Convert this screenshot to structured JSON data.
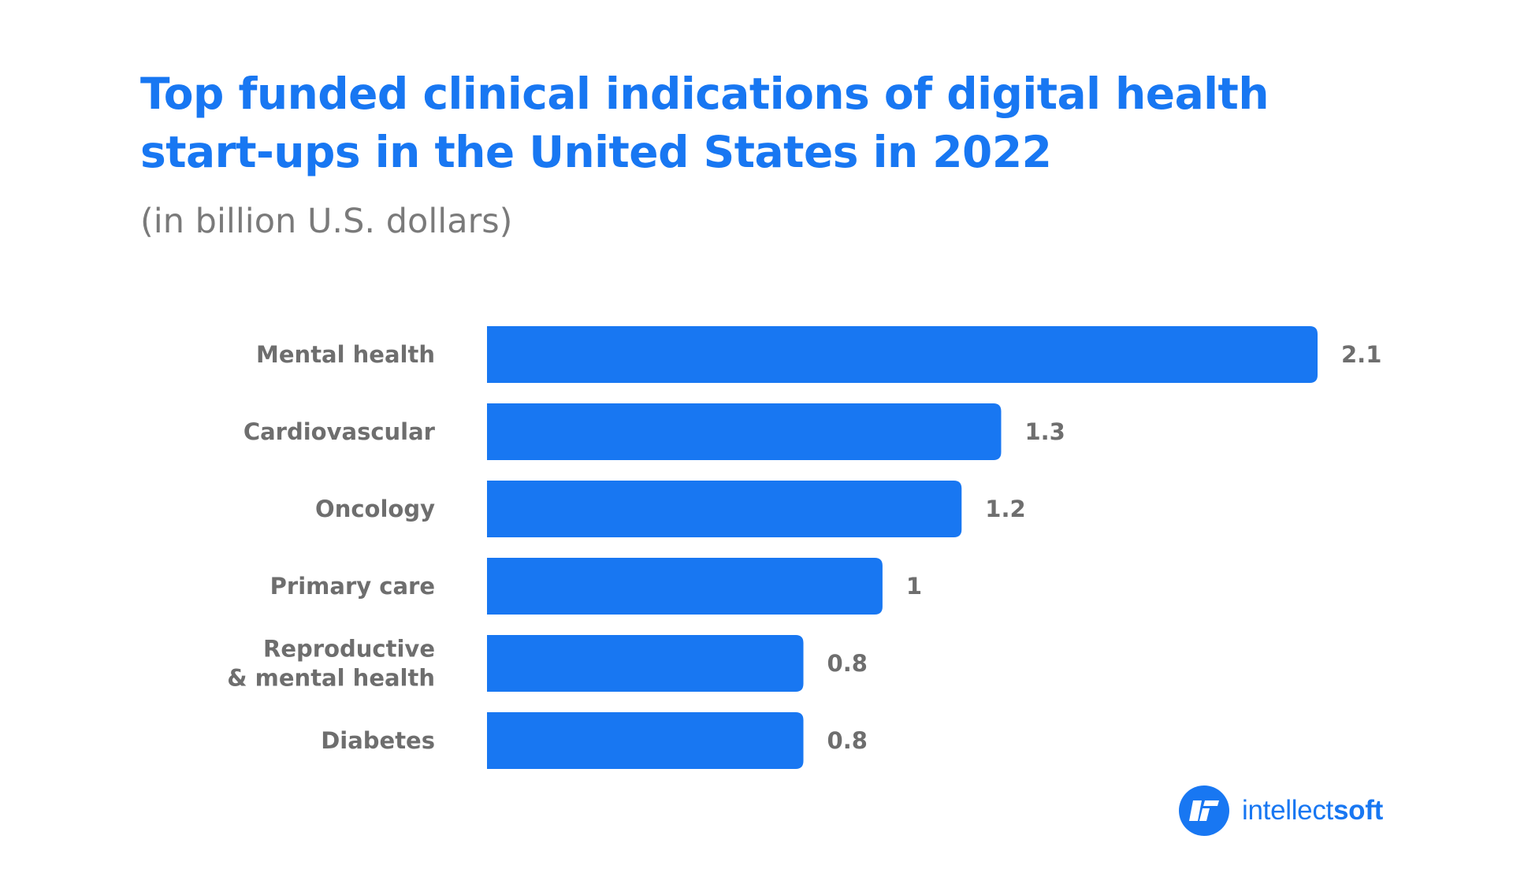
{
  "title_lines": [
    "Top funded clinical indications of digital health",
    "start-ups in the United States in 2022"
  ],
  "subtitle": "(in billion U.S. dollars)",
  "colors": {
    "bar": "#1877F2",
    "title": "#1877F2",
    "label": "#6e6e6e",
    "subtitle": "#7a7a7a"
  },
  "chart_data": {
    "type": "bar",
    "orientation": "horizontal",
    "title": "Top funded clinical indications of digital health start-ups in the United States in 2022",
    "subtitle": "(in billion U.S. dollars)",
    "categories": [
      [
        "Mental health"
      ],
      [
        "Cardiovascular"
      ],
      [
        "Oncology"
      ],
      [
        "Primary care"
      ],
      [
        "Reproductive",
        "& mental health"
      ],
      [
        "Diabetes"
      ]
    ],
    "values": [
      2.1,
      1.3,
      1.2,
      1,
      0.8,
      0.8
    ],
    "value_labels": [
      "2.1",
      "1.3",
      "1.2",
      "1",
      "0.8",
      "0.8"
    ],
    "xlim": [
      0,
      2.1
    ],
    "grid": false,
    "legend": "none",
    "data_labels": "end"
  },
  "logo": {
    "icon": "intellectsoft-logo-icon",
    "text_regular": "intellect",
    "text_bold": "soft"
  }
}
